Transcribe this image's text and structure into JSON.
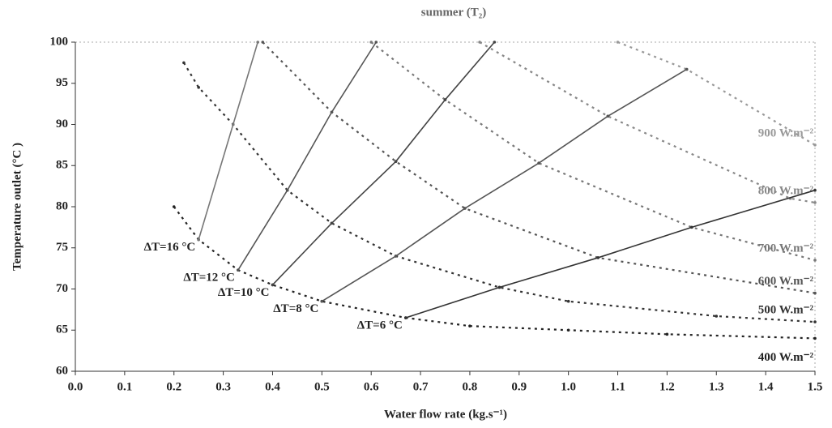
{
  "chart_data": {
    "type": "line",
    "title": "summer (T₂)",
    "x_label": "Water flow rate (kg.s⁻¹)",
    "y_label": "Temperature outlet (°C )",
    "xlim": [
      0,
      1.5
    ],
    "ylim": [
      60,
      100
    ],
    "xticks": [
      {
        "value": 0,
        "label": "0.0"
      },
      0.1,
      0.2,
      0.3,
      0.4,
      0.5,
      0.6,
      0.7,
      0.8,
      0.9,
      {
        "value": 1,
        "label": "1.0"
      },
      1.1,
      1.2,
      1.3,
      1.4,
      1.5
    ],
    "yticks": [
      60,
      65,
      70,
      75,
      80,
      85,
      90,
      95,
      100
    ],
    "series": [
      {
        "name": "400 W.m⁻²",
        "color": "#222222",
        "style": "dashed",
        "x": [
          0.2,
          0.25,
          0.33,
          0.4,
          0.5,
          0.67,
          0.8,
          1.0,
          1.2,
          1.5
        ],
        "values": [
          80,
          76,
          72.3,
          70.5,
          68.5,
          66.5,
          65.5,
          65,
          64.5,
          64
        ]
      },
      {
        "name": "500 W.m⁻²",
        "color": "#333333",
        "style": "dashed",
        "x": [
          0.22,
          0.25,
          0.32,
          0.43,
          0.52,
          0.65,
          0.86,
          1.0,
          1.3,
          1.5
        ],
        "values": [
          97.5,
          94.5,
          90,
          82,
          78,
          74,
          70.2,
          68.5,
          66.7,
          66
        ]
      },
      {
        "name": "600 W.m⁻²",
        "color": "#555555",
        "style": "dashed",
        "x": [
          0.38,
          0.52,
          0.65,
          0.79,
          1.06,
          1.5
        ],
        "values": [
          100,
          91.5,
          85.5,
          79.8,
          73.8,
          69.5
        ]
      },
      {
        "name": "700 W.m⁻²",
        "color": "#777777",
        "style": "dashed",
        "x": [
          0.6,
          0.75,
          0.94,
          1.25,
          1.5
        ],
        "values": [
          100,
          93,
          85.3,
          77.5,
          73.5
        ]
      },
      {
        "name": "800 W.m⁻²",
        "color": "#888888",
        "style": "dashed",
        "x": [
          0.82,
          1.08,
          1.45,
          1.5
        ],
        "values": [
          100,
          91,
          81,
          80.5
        ]
      },
      {
        "name": "900 W.m⁻²",
        "color": "#999999",
        "style": "dashed",
        "x": [
          1.1,
          1.24,
          1.5
        ],
        "values": [
          100,
          96.7,
          87.5
        ]
      },
      {
        "name": "ΔT=16 °C",
        "color": "#777777",
        "style": "solid",
        "x": [
          0.25,
          0.32,
          0.37
        ],
        "values": [
          76,
          90,
          100
        ]
      },
      {
        "name": "ΔT=12 °C",
        "color": "#555555",
        "style": "solid",
        "x": [
          0.33,
          0.43,
          0.52,
          0.61
        ],
        "values": [
          72.3,
          82,
          91.5,
          100
        ]
      },
      {
        "name": "ΔT=10 °C",
        "color": "#444444",
        "style": "solid",
        "x": [
          0.4,
          0.52,
          0.65,
          0.75,
          0.85
        ],
        "values": [
          70.5,
          78,
          85.5,
          93,
          100
        ]
      },
      {
        "name": "ΔT=8 °C",
        "color": "#555555",
        "style": "solid",
        "x": [
          0.5,
          0.65,
          0.79,
          0.94,
          1.08,
          1.24
        ],
        "values": [
          68.5,
          74,
          79.8,
          85.3,
          91,
          96.7
        ]
      },
      {
        "name": "ΔT=6 °C",
        "color": "#333333",
        "style": "solid",
        "x": [
          0.67,
          0.86,
          1.06,
          1.25,
          1.5
        ],
        "values": [
          66.5,
          70.2,
          73.8,
          77.5,
          82
        ]
      }
    ]
  }
}
